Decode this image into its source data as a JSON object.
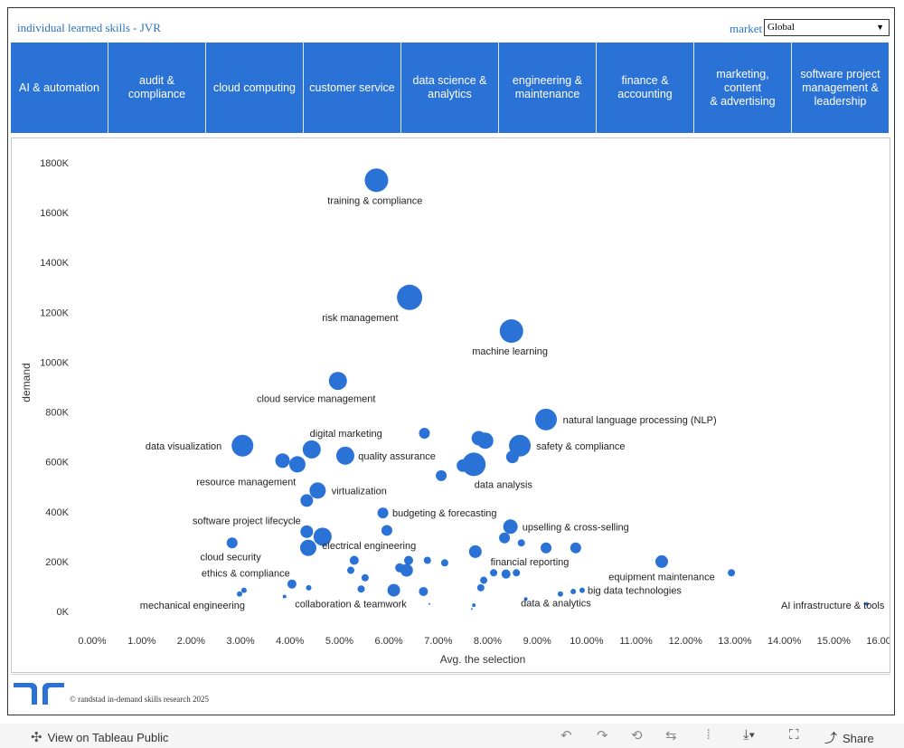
{
  "header": {
    "title": "individual learned skills - JVR",
    "market_label": "market",
    "market_value": "Global"
  },
  "tabs": [
    {
      "label": "AI & automation"
    },
    {
      "label": "audit &\ncompliance"
    },
    {
      "label": "cloud computing"
    },
    {
      "label": "customer service"
    },
    {
      "label": "data science &\nanalytics"
    },
    {
      "label": "engineering &\nmaintenance"
    },
    {
      "label": "finance &\naccounting"
    },
    {
      "label": "marketing, content\n& advertising"
    },
    {
      "label": "software project\nmanagement &\nleadership"
    }
  ],
  "chart_data": {
    "type": "scatter",
    "xlabel": "Avg. the selection",
    "ylabel": "demand",
    "xlim": [
      0,
      16.0
    ],
    "ylim": [
      0,
      1800000
    ],
    "x_ticks": [
      "0.00%",
      "1.00%",
      "2.00%",
      "3.00%",
      "4.00%",
      "5.00%",
      "6.00%",
      "7.00%",
      "8.00%",
      "9.00%",
      "10.00%",
      "11.00%",
      "12.00%",
      "13.00%",
      "14.00%",
      "15.00%",
      "16.00%"
    ],
    "y_ticks": [
      "0K",
      "200K",
      "400K",
      "600K",
      "800K",
      "1000K",
      "1200K",
      "1400K",
      "1600K",
      "1800K"
    ],
    "grid": false,
    "color": "#2a72d6",
    "points": [
      {
        "label": "training & compliance",
        "x": 5.75,
        "y": 1730000,
        "r": 13
      },
      {
        "label": "risk management",
        "x": 6.42,
        "y": 1260000,
        "r": 14
      },
      {
        "label": "machine learning",
        "x": 8.48,
        "y": 1125000,
        "r": 13
      },
      {
        "label": "cloud service management",
        "x": 4.97,
        "y": 925000,
        "r": 10
      },
      {
        "label": "natural language processing (NLP)",
        "x": 9.18,
        "y": 770000,
        "r": 12
      },
      {
        "label": "",
        "x": 6.72,
        "y": 715000,
        "r": 6
      },
      {
        "label": "digital marketing",
        "x": 4.44,
        "y": 650000,
        "r": 10
      },
      {
        "label": "data visualization",
        "x": 3.04,
        "y": 665000,
        "r": 12
      },
      {
        "label": "safety & compliance",
        "x": 8.65,
        "y": 665000,
        "r": 12
      },
      {
        "label": "",
        "x": 7.82,
        "y": 695000,
        "r": 8
      },
      {
        "label": "",
        "x": 7.95,
        "y": 685000,
        "r": 9
      },
      {
        "label": "quality assurance",
        "x": 5.12,
        "y": 625000,
        "r": 10
      },
      {
        "label": "",
        "x": 3.85,
        "y": 605000,
        "r": 8
      },
      {
        "label": "",
        "x": 4.15,
        "y": 590000,
        "r": 9
      },
      {
        "label": "",
        "x": 8.5,
        "y": 620000,
        "r": 7
      },
      {
        "label": "",
        "x": 7.5,
        "y": 585000,
        "r": 7
      },
      {
        "label": "data analysis",
        "x": 7.72,
        "y": 590000,
        "r": 13
      },
      {
        "label": "resource management",
        "x": 7.06,
        "y": 545000,
        "r": 6
      },
      {
        "label": "virtualization",
        "x": 4.56,
        "y": 485000,
        "r": 9
      },
      {
        "label": "",
        "x": 4.34,
        "y": 445000,
        "r": 7
      },
      {
        "label": "budgeting & forecasting",
        "x": 5.88,
        "y": 395000,
        "r": 6
      },
      {
        "label": "software project lifecycle",
        "x": 4.34,
        "y": 320000,
        "r": 7
      },
      {
        "label": "",
        "x": 4.66,
        "y": 300000,
        "r": 10
      },
      {
        "label": "",
        "x": 5.96,
        "y": 325000,
        "r": 6
      },
      {
        "label": "upselling & cross-selling",
        "x": 8.46,
        "y": 340000,
        "r": 8
      },
      {
        "label": "",
        "x": 8.34,
        "y": 295000,
        "r": 6
      },
      {
        "label": "",
        "x": 8.68,
        "y": 275000,
        "r": 4
      },
      {
        "label": "",
        "x": 9.18,
        "y": 255000,
        "r": 6
      },
      {
        "label": "",
        "x": 9.78,
        "y": 255000,
        "r": 6
      },
      {
        "label": "cloud security",
        "x": 2.83,
        "y": 275000,
        "r": 6
      },
      {
        "label": "electrical engineering",
        "x": 4.37,
        "y": 255000,
        "r": 9
      },
      {
        "label": "",
        "x": 7.75,
        "y": 240000,
        "r": 7
      },
      {
        "label": "equipment maintenance",
        "x": 11.52,
        "y": 200000,
        "r": 7
      },
      {
        "label": "",
        "x": 5.3,
        "y": 205000,
        "r": 5
      },
      {
        "label": "",
        "x": 6.4,
        "y": 205000,
        "r": 5
      },
      {
        "label": "",
        "x": 6.78,
        "y": 205000,
        "r": 4
      },
      {
        "label": "",
        "x": 7.13,
        "y": 195000,
        "r": 4
      },
      {
        "label": "financial reporting",
        "x": 8.58,
        "y": 155000,
        "r": 4
      },
      {
        "label": "",
        "x": 6.22,
        "y": 175000,
        "r": 5
      },
      {
        "label": "",
        "x": 6.36,
        "y": 165000,
        "r": 7
      },
      {
        "label": "",
        "x": 5.23,
        "y": 165000,
        "r": 4
      },
      {
        "label": "",
        "x": 5.52,
        "y": 135000,
        "r": 4
      },
      {
        "label": "",
        "x": 8.12,
        "y": 155000,
        "r": 4
      },
      {
        "label": "",
        "x": 8.37,
        "y": 150000,
        "r": 5
      },
      {
        "label": "ethics & compliance",
        "x": 7.92,
        "y": 125000,
        "r": 4
      },
      {
        "label": "",
        "x": 7.86,
        "y": 95000,
        "r": 4
      },
      {
        "label": "",
        "x": 12.93,
        "y": 155000,
        "r": 4
      },
      {
        "label": "",
        "x": 4.04,
        "y": 110000,
        "r": 5
      },
      {
        "label": "",
        "x": 4.38,
        "y": 95000,
        "r": 3
      },
      {
        "label": "",
        "x": 5.44,
        "y": 90000,
        "r": 4
      },
      {
        "label": "",
        "x": 6.1,
        "y": 85000,
        "r": 7
      },
      {
        "label": "",
        "x": 6.7,
        "y": 80000,
        "r": 5
      },
      {
        "label": "big data technologies",
        "x": 9.47,
        "y": 70000,
        "r": 3
      },
      {
        "label": "",
        "x": 9.73,
        "y": 80000,
        "r": 3
      },
      {
        "label": "",
        "x": 9.91,
        "y": 85000,
        "r": 3
      },
      {
        "label": "",
        "x": 3.07,
        "y": 85000,
        "r": 3
      },
      {
        "label": "mechanical engineering",
        "x": 2.98,
        "y": 70000,
        "r": 3
      },
      {
        "label": "",
        "x": 3.89,
        "y": 60000,
        "r": 2
      },
      {
        "label": "data & analytics",
        "x": 8.77,
        "y": 50000,
        "r": 2
      },
      {
        "label": "collaboration & teamwork",
        "x": 7.72,
        "y": 25000,
        "r": 2
      },
      {
        "label": "",
        "x": 6.82,
        "y": 30000,
        "r": 1
      },
      {
        "label": "",
        "x": 7.68,
        "y": 10000,
        "r": 1
      },
      {
        "label": "AI infrastructure & tools",
        "x": 15.67,
        "y": 30000,
        "r": 2
      }
    ],
    "annotations": [
      {
        "text": "training & compliance",
        "x": 5.72,
        "y": 1650000,
        "anchor": "middle"
      },
      {
        "text": "risk management",
        "x": 5.42,
        "y": 1180000,
        "anchor": "middle"
      },
      {
        "text": "machine learning",
        "x": 8.45,
        "y": 1045000,
        "anchor": "middle"
      },
      {
        "text": "cloud service management",
        "x": 4.53,
        "y": 855000,
        "anchor": "middle"
      },
      {
        "text": "natural language processing (NLP)",
        "x": 9.52,
        "y": 770000,
        "anchor": "start"
      },
      {
        "text": "digital marketing",
        "x": 4.4,
        "y": 715000,
        "anchor": "start"
      },
      {
        "text": "data visualization",
        "x": 2.62,
        "y": 665000,
        "anchor": "end"
      },
      {
        "text": "safety & compliance",
        "x": 8.98,
        "y": 665000,
        "anchor": "start"
      },
      {
        "text": "quality assurance",
        "x": 5.38,
        "y": 625000,
        "anchor": "start"
      },
      {
        "text": "resource management",
        "x": 4.12,
        "y": 520000,
        "anchor": "end"
      },
      {
        "text": "data analysis",
        "x": 7.73,
        "y": 510000,
        "anchor": "start"
      },
      {
        "text": "virtualization",
        "x": 4.84,
        "y": 485000,
        "anchor": "start"
      },
      {
        "text": "software project lifecycle",
        "x": 4.22,
        "y": 365000,
        "anchor": "end"
      },
      {
        "text": "budgeting & forecasting",
        "x": 6.07,
        "y": 395000,
        "anchor": "start"
      },
      {
        "text": "upselling & cross-selling",
        "x": 8.7,
        "y": 340000,
        "anchor": "start"
      },
      {
        "text": "electrical engineering",
        "x": 5.6,
        "y": 265000,
        "anchor": "middle"
      },
      {
        "text": "cloud security",
        "x": 2.8,
        "y": 220000,
        "anchor": "middle"
      },
      {
        "text": "financial reporting",
        "x": 8.85,
        "y": 200000,
        "anchor": "middle"
      },
      {
        "text": "ethics & compliance",
        "x": 4.0,
        "y": 155000,
        "anchor": "end"
      },
      {
        "text": "equipment maintenance",
        "x": 11.52,
        "y": 140000,
        "anchor": "middle"
      },
      {
        "text": "big data technologies",
        "x": 10.02,
        "y": 85000,
        "anchor": "start"
      },
      {
        "text": "mechanical engineering",
        "x": 3.09,
        "y": 25000,
        "anchor": "end"
      },
      {
        "text": "collaboration & teamwork",
        "x": 5.23,
        "y": 30000,
        "anchor": "middle"
      },
      {
        "text": "data & analytics",
        "x": 9.38,
        "y": 35000,
        "anchor": "middle"
      },
      {
        "text": "AI infrastructure & tools",
        "x": 14.98,
        "y": 25000,
        "anchor": "middle"
      }
    ]
  },
  "footer": {
    "copyright": "© randstad in-demand skills research 2025"
  },
  "toolbar": {
    "view_label": "View on Tableau Public",
    "share_label": "Share"
  }
}
